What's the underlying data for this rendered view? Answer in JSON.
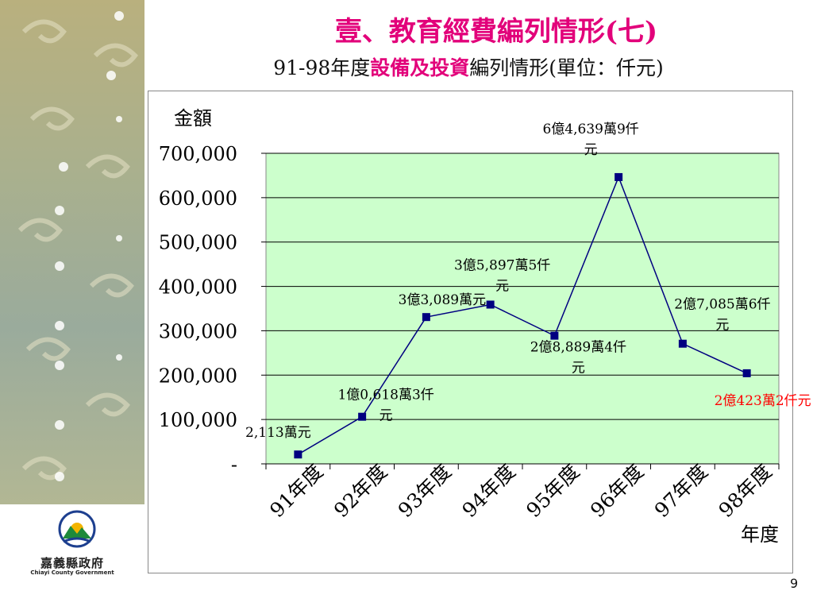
{
  "slide": {
    "title": "壹、教育經費編列情形(七)",
    "subtitle_prefix": "91-98年度",
    "subtitle_highlight": "設備及投資",
    "subtitle_suffix": "編列情形(單位：仟元)",
    "page_number": "9"
  },
  "logo": {
    "name": "嘉義縣政府",
    "subname": "Chiayi County Government"
  },
  "colors": {
    "accent": "#e2007a",
    "plot_bg": "#ccffcc",
    "line": "#000080",
    "annotation_red": "#ff0000"
  },
  "chart_data": {
    "type": "line",
    "ylabel": "金額",
    "xlabel": "年度",
    "categories": [
      "91年度",
      "92年度",
      "93年度",
      "94年度",
      "95年度",
      "96年度",
      "97年度",
      "98年度"
    ],
    "values": [
      21130,
      106183,
      330890,
      358975,
      288894,
      646399,
      270856,
      204232
    ],
    "ylim": [
      0,
      700000
    ],
    "yticks": [
      0,
      100000,
      200000,
      300000,
      400000,
      500000,
      600000,
      700000
    ],
    "ytick_labels": [
      "-",
      "100,000",
      "200,000",
      "300,000",
      "400,000",
      "500,000",
      "600,000",
      "700,000"
    ],
    "grid": true,
    "annotations": [
      [
        "2,113萬元"
      ],
      [
        "1億0,618萬3仟",
        "元"
      ],
      [
        "3億3,089萬元"
      ],
      [
        "3億5,897萬5仟",
        "元"
      ],
      [
        "2億8,889萬4仟",
        "元"
      ],
      [
        "6億4,639萬9仟",
        "元"
      ],
      [
        "2億7,085萬6仟",
        "元"
      ],
      [
        "2億423萬2仟元"
      ]
    ]
  }
}
